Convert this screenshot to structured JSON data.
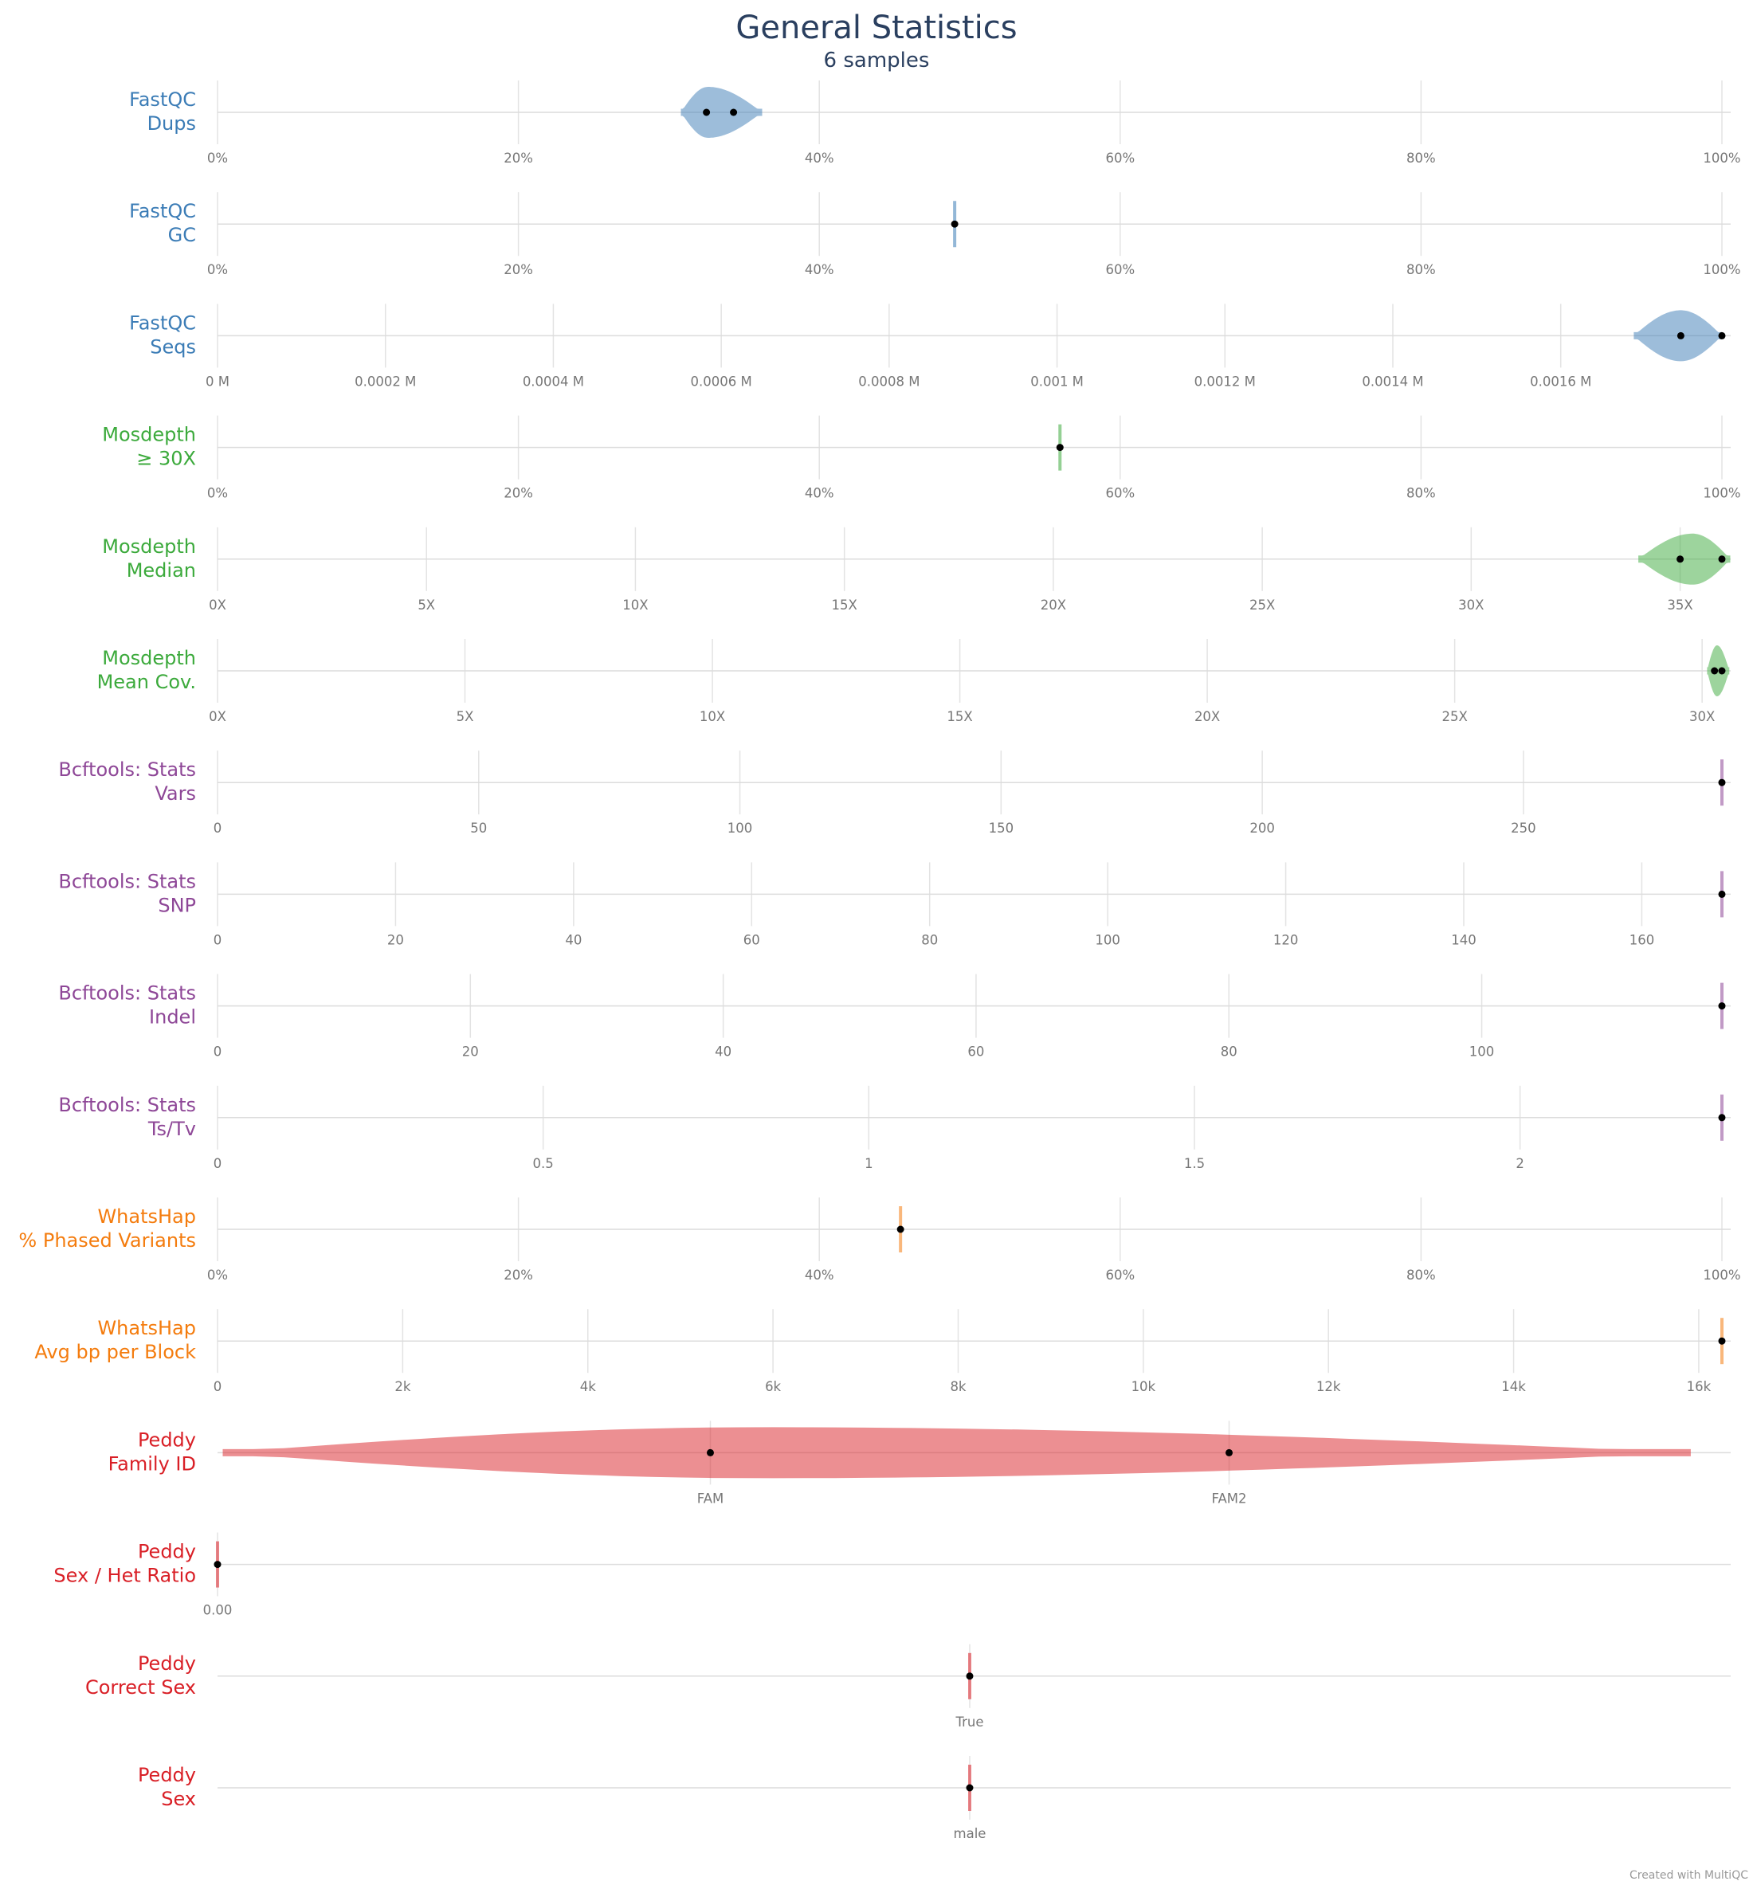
{
  "title": "General Statistics",
  "subtitle": "6 samples",
  "credit": "Created with MultiQC",
  "colors": {
    "fastqc": "#3b7cb6",
    "mosdepth": "#3caa3c",
    "bcftools": "#8e4797",
    "whatshap": "#f47c0e",
    "peddy": "#d91f26"
  },
  "chart_data": {
    "type": "violin",
    "metrics": [
      {
        "label": [
          "FastQC",
          "Dups"
        ],
        "group": "fastqc",
        "ticks": [
          "0%",
          "20%",
          "40%",
          "60%",
          "80%",
          "100%"
        ],
        "tick_values": [
          0,
          20,
          40,
          60,
          80,
          100
        ],
        "range": [
          0,
          100
        ],
        "points": [
          32.5,
          34.3
        ],
        "violin": {
          "min": 30.8,
          "max": 36.2,
          "peak": 32.6
        }
      },
      {
        "label": [
          "FastQC",
          "GC"
        ],
        "group": "fastqc",
        "ticks": [
          "0%",
          "20%",
          "40%",
          "60%",
          "80%",
          "100%"
        ],
        "tick_values": [
          0,
          20,
          40,
          60,
          80,
          100
        ],
        "range": [
          0,
          100
        ],
        "points": [
          49
        ],
        "violin": null
      },
      {
        "label": [
          "FastQC",
          "Seqs"
        ],
        "group": "fastqc",
        "ticks": [
          "0 M",
          "0.0002 M",
          "0.0004 M",
          "0.0006 M",
          "0.0008 M",
          "0.001 M",
          "0.0012 M",
          "0.0014 M",
          "0.0016 M"
        ],
        "tick_values": [
          0,
          0.0002,
          0.0004,
          0.0006,
          0.0008,
          0.001,
          0.0012,
          0.0014,
          0.0016
        ],
        "range": [
          0,
          0.001792
        ],
        "points": [
          0.001743,
          0.001792
        ],
        "violin": {
          "min": 0.001687,
          "max": 0.001792,
          "peak": 0.001743
        }
      },
      {
        "label": [
          "Mosdepth",
          "≥ 30X"
        ],
        "group": "mosdepth",
        "ticks": [
          "0%",
          "20%",
          "40%",
          "60%",
          "80%",
          "100%"
        ],
        "tick_values": [
          0,
          20,
          40,
          60,
          80,
          100
        ],
        "range": [
          0,
          100
        ],
        "points": [
          56
        ],
        "violin": null
      },
      {
        "label": [
          "Mosdepth",
          "Median"
        ],
        "group": "mosdepth",
        "ticks": [
          "0X",
          "5X",
          "10X",
          "15X",
          "20X",
          "25X",
          "30X",
          "35X"
        ],
        "tick_values": [
          0,
          5,
          10,
          15,
          20,
          25,
          30,
          35
        ],
        "range": [
          0,
          36
        ],
        "points": [
          35,
          36
        ],
        "violin": {
          "min": 34.0,
          "max": 36.2,
          "peak": 35.3
        }
      },
      {
        "label": [
          "Mosdepth",
          "Mean Cov."
        ],
        "group": "mosdepth",
        "ticks": [
          "0X",
          "5X",
          "10X",
          "15X",
          "20X",
          "25X",
          "30X"
        ],
        "tick_values": [
          0,
          5,
          10,
          15,
          20,
          25,
          30
        ],
        "range": [
          0,
          30.4
        ],
        "points": [
          30.25,
          30.4
        ],
        "violin": {
          "min": 30.1,
          "max": 30.55,
          "peak": 30.3
        }
      },
      {
        "label": [
          "Bcftools: Stats",
          "Vars"
        ],
        "group": "bcftools",
        "ticks": [
          "0",
          "50",
          "100",
          "150",
          "200",
          "250"
        ],
        "tick_values": [
          0,
          50,
          100,
          150,
          200,
          250
        ],
        "range": [
          0,
          288
        ],
        "points": [
          288
        ],
        "violin": null
      },
      {
        "label": [
          "Bcftools: Stats",
          "SNP"
        ],
        "group": "bcftools",
        "ticks": [
          "0",
          "20",
          "40",
          "60",
          "80",
          "100",
          "120",
          "140",
          "160"
        ],
        "tick_values": [
          0,
          20,
          40,
          60,
          80,
          100,
          120,
          140,
          160
        ],
        "range": [
          0,
          169
        ],
        "points": [
          169
        ],
        "violin": null
      },
      {
        "label": [
          "Bcftools: Stats",
          "Indel"
        ],
        "group": "bcftools",
        "ticks": [
          "0",
          "20",
          "40",
          "60",
          "80",
          "100"
        ],
        "tick_values": [
          0,
          20,
          40,
          60,
          80,
          100
        ],
        "range": [
          0,
          119
        ],
        "points": [
          119
        ],
        "violin": null
      },
      {
        "label": [
          "Bcftools: Stats",
          "Ts/Tv"
        ],
        "group": "bcftools",
        "ticks": [
          "0",
          "0.5",
          "1",
          "1.5",
          "2"
        ],
        "tick_values": [
          0,
          0.5,
          1,
          1.5,
          2
        ],
        "range": [
          0,
          2.31
        ],
        "points": [
          2.31
        ],
        "violin": null
      },
      {
        "label": [
          "WhatsHap",
          "% Phased Variants"
        ],
        "group": "whatshap",
        "ticks": [
          "0%",
          "20%",
          "40%",
          "60%",
          "80%",
          "100%"
        ],
        "tick_values": [
          0,
          20,
          40,
          60,
          80,
          100
        ],
        "range": [
          0,
          100
        ],
        "points": [
          45.4
        ],
        "violin": null
      },
      {
        "label": [
          "WhatsHap",
          "Avg bp per Block"
        ],
        "group": "whatshap",
        "ticks": [
          "0",
          "2k",
          "4k",
          "6k",
          "8k",
          "10k",
          "12k",
          "14k",
          "16k"
        ],
        "tick_values": [
          0,
          2000,
          4000,
          6000,
          8000,
          10000,
          12000,
          14000,
          16000
        ],
        "range": [
          0,
          16250
        ],
        "points": [
          16250
        ],
        "violin": null
      },
      {
        "label": [
          "Peddy",
          "Family ID"
        ],
        "group": "peddy",
        "ticks": [
          "FAM",
          "FAM2"
        ],
        "tick_values": [
          0,
          1
        ],
        "range": [
          -0.95,
          1.95
        ],
        "points": [
          0,
          1
        ],
        "violin": {
          "min": -0.94,
          "max": 1.89,
          "peak": 0.1
        }
      },
      {
        "label": [
          "Peddy",
          "Sex / Het Ratio"
        ],
        "group": "peddy",
        "ticks": [
          "0.00"
        ],
        "tick_values": [
          0
        ],
        "range": [
          0,
          1
        ],
        "points": [
          0
        ],
        "violin": null
      },
      {
        "label": [
          "Peddy",
          "Correct Sex"
        ],
        "group": "peddy",
        "ticks": [
          "True"
        ],
        "tick_values": [
          0
        ],
        "range": [
          -1,
          1
        ],
        "points": [
          0
        ],
        "violin": null
      },
      {
        "label": [
          "Peddy",
          "Sex"
        ],
        "group": "peddy",
        "ticks": [
          "male"
        ],
        "tick_values": [
          0
        ],
        "range": [
          -1,
          1
        ],
        "points": [
          0
        ],
        "violin": null
      }
    ]
  }
}
